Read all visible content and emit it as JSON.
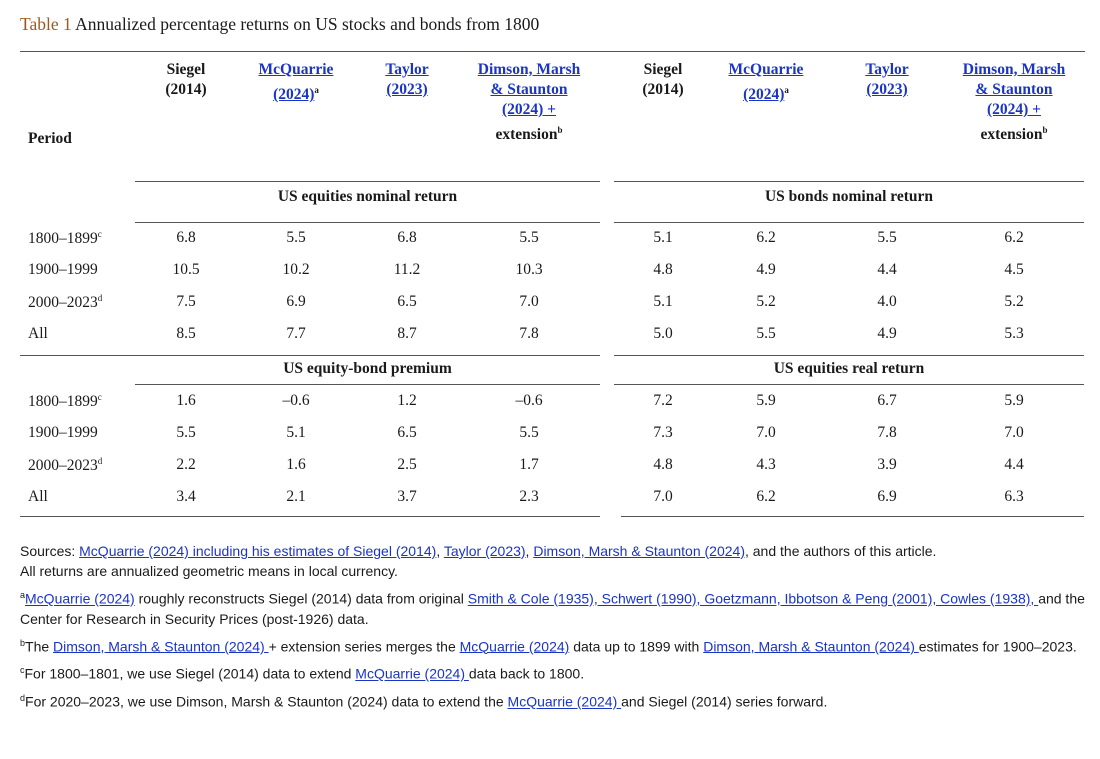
{
  "caption": {
    "label": "Table 1",
    "text": " Annualized percentage returns on US stocks and bonds from 1800"
  },
  "header": {
    "period": "Period",
    "columns": [
      {
        "l1": "Siegel",
        "l2": "(2014)",
        "link": false
      },
      {
        "l1": "McQuarrie",
        "l2": "(2024)",
        "sup": "a",
        "link": true
      },
      {
        "l1": "Taylor",
        "l2": "(2023)",
        "link": true
      },
      {
        "l1": "Dimson, Marsh",
        "l2": "& Staunton",
        "l3": "(2024) +",
        "l4": "extension",
        "sup": "b",
        "link": true
      },
      {
        "l1": "Siegel",
        "l2": "(2014)",
        "link": false
      },
      {
        "l1": "McQuarrie",
        "l2": "(2024)",
        "sup": "a",
        "link": true
      },
      {
        "l1": "Taylor",
        "l2": "(2023)",
        "link": true
      },
      {
        "l1": "Dimson, Marsh",
        "l2": "& Staunton",
        "l3": "(2024) +",
        "l4": "extension",
        "sup": "b",
        "link": true
      }
    ]
  },
  "sections": {
    "equities_nominal": "US equities nominal return",
    "bonds_nominal": "US bonds nominal return",
    "equity_bond_premium": "US equity-bond premium",
    "equities_real": "US equities real return"
  },
  "row_labels": [
    {
      "text": "1800–1899",
      "sup": "c"
    },
    {
      "text": "1900–1999",
      "sup": ""
    },
    {
      "text": "2000–2023",
      "sup": "d"
    },
    {
      "text": "All",
      "sup": ""
    },
    {
      "text": "1800–1899",
      "sup": "c"
    },
    {
      "text": "1900–1999",
      "sup": ""
    },
    {
      "text": "2000–2023",
      "sup": "d"
    },
    {
      "text": "All",
      "sup": ""
    }
  ],
  "rows": [
    [
      "6.8",
      "5.5",
      "6.8",
      "5.5",
      "5.1",
      "6.2",
      "5.5",
      "6.2"
    ],
    [
      "10.5",
      "10.2",
      "11.2",
      "10.3",
      "4.8",
      "4.9",
      "4.4",
      "4.5"
    ],
    [
      "7.5",
      "6.9",
      "6.5",
      "7.0",
      "5.1",
      "5.2",
      "4.0",
      "5.2"
    ],
    [
      "8.5",
      "7.7",
      "8.7",
      "7.8",
      "5.0",
      "5.5",
      "4.9",
      "5.3"
    ],
    [
      "1.6",
      "–0.6",
      "1.2",
      "–0.6",
      "7.2",
      "5.9",
      "6.7",
      "5.9"
    ],
    [
      "5.5",
      "5.1",
      "6.5",
      "5.5",
      "7.3",
      "7.0",
      "7.8",
      "7.0"
    ],
    [
      "2.2",
      "1.6",
      "2.5",
      "1.7",
      "4.8",
      "4.3",
      "3.9",
      "4.4"
    ],
    [
      "3.4",
      "2.1",
      "3.7",
      "2.3",
      "7.0",
      "6.2",
      "6.9",
      "6.3"
    ]
  ],
  "notes": {
    "sources_prefix": "Sources: ",
    "sources_link1": "McQuarrie (2024) including his estimates of Siegel (2014)",
    "sources_sep1": ", ",
    "sources_link2": "Taylor (2023)",
    "sources_sep2": ", ",
    "sources_link3": "Dimson, Marsh & Staunton (2024)",
    "sources_suffix": ", and the authors of this article.",
    "geometric": "All returns are annualized geometric means in local currency.",
    "a_sup": "a",
    "a_link1": "McQuarrie (2024)",
    "a_text1": " roughly reconstructs Siegel (2014) data from original ",
    "a_link2": "Smith & Cole (1935), Schwert (1990), Goetzmann, Ibbotson & Peng (2001), Cowles (1938), ",
    "a_text2": "and the Center for Research in Security Prices  (post-1926) data.",
    "b_sup": "b",
    "b_text1": "The ",
    "b_link1": "Dimson, Marsh & Staunton (2024) ",
    "b_text2": "+ extension series merges the ",
    "b_link2": "McQuarrie (2024)",
    "b_text3": " data up to 1899 with ",
    "b_link3": "Dimson, Marsh & Staunton (2024) ",
    "b_text4": "estimates for 1900–2023.",
    "c_sup": "c",
    "c_text1": "For 1800–1801, we use Siegel (2014) data to extend ",
    "c_link1": "McQuarrie (2024) ",
    "c_text2": "data back to 1800.",
    "d_sup": "d",
    "d_text1": "For 2020–2023, we use Dimson, Marsh & Staunton (2024) data to extend the ",
    "d_link1": "McQuarrie (2024) ",
    "d_text2": "and Siegel (2014) series forward."
  }
}
